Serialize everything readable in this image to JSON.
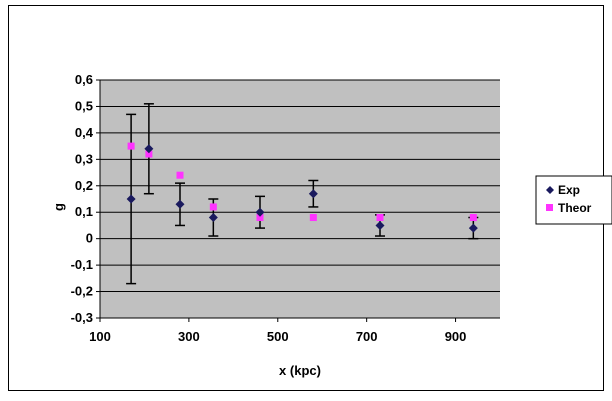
{
  "chart_data": {
    "type": "scatter",
    "xlabel": "x (kpc)",
    "ylabel": "g",
    "xlim": [
      100,
      1000
    ],
    "ylim": [
      -0.3,
      0.6
    ],
    "x_ticks": [
      100,
      300,
      500,
      700,
      900
    ],
    "x_tick_labels": [
      "100",
      "300",
      "500",
      "700",
      "900"
    ],
    "y_ticks": [
      -0.3,
      -0.2,
      -0.1,
      0,
      0.1,
      0.2,
      0.3,
      0.4,
      0.5,
      0.6
    ],
    "y_tick_labels": [
      "-0,3",
      "-0,2",
      "-0,1",
      "0",
      "0,1",
      "0,2",
      "0,3",
      "0,4",
      "0,5",
      "0,6"
    ],
    "grid": true,
    "legend_position": "right",
    "series": [
      {
        "name": "Exp",
        "marker": "diamond",
        "color": "#1a1a5e",
        "x": [
          170,
          210,
          280,
          355,
          460,
          580,
          730,
          940
        ],
        "y": [
          0.15,
          0.34,
          0.13,
          0.08,
          0.1,
          0.17,
          0.05,
          0.04
        ],
        "err_low": [
          0.32,
          0.17,
          0.08,
          0.07,
          0.06,
          0.05,
          0.04,
          0.04
        ],
        "err_high": [
          0.32,
          0.17,
          0.08,
          0.07,
          0.06,
          0.05,
          0.04,
          0.04
        ]
      },
      {
        "name": "Theor",
        "marker": "square",
        "color": "#ff33ff",
        "x": [
          170,
          210,
          280,
          355,
          460,
          580,
          730,
          940
        ],
        "y": [
          0.35,
          0.32,
          0.24,
          0.12,
          0.08,
          0.08,
          0.08,
          0.08
        ]
      }
    ]
  },
  "colors": {
    "plot_background": "#c0c0c0",
    "gridline": "#000000"
  }
}
